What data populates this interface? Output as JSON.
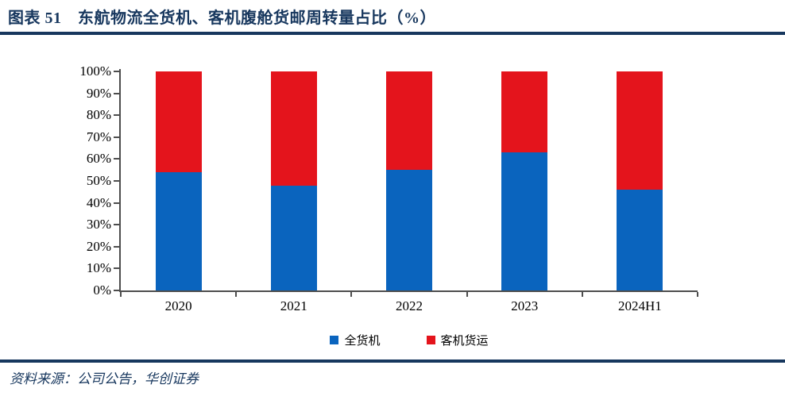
{
  "header": {
    "title": "图表 51　东航物流全货机、客机腹舱货邮周转量占比（%）"
  },
  "footer": {
    "source": "资料来源：公司公告，华创证券"
  },
  "legend": [
    {
      "label": "全货机",
      "color": "#0A64BE"
    },
    {
      "label": "客机货运",
      "color": "#E4141C"
    }
  ],
  "colors": {
    "accent_navy": "#17375E",
    "bar_blue": "#0A64BE",
    "bar_red": "#E4141C",
    "axis": "#4d4d4d",
    "text": "#000000"
  },
  "chart_data": {
    "type": "bar",
    "stacked": true,
    "title": "东航物流全货机、客机腹舱货邮周转量占比（%）",
    "categories": [
      "2020",
      "2021",
      "2022",
      "2023",
      "2024H1"
    ],
    "series": [
      {
        "name": "全货机",
        "color": "#0A64BE",
        "values": [
          54,
          48,
          55,
          63,
          46
        ]
      },
      {
        "name": "客机货运",
        "color": "#E4141C",
        "values": [
          46,
          52,
          45,
          37,
          54
        ]
      }
    ],
    "xlabel": "",
    "ylabel": "",
    "ylim": [
      0,
      100
    ],
    "ytick_step": 10,
    "ytick_format": "percent",
    "grid": false,
    "legend_position": "bottom"
  }
}
